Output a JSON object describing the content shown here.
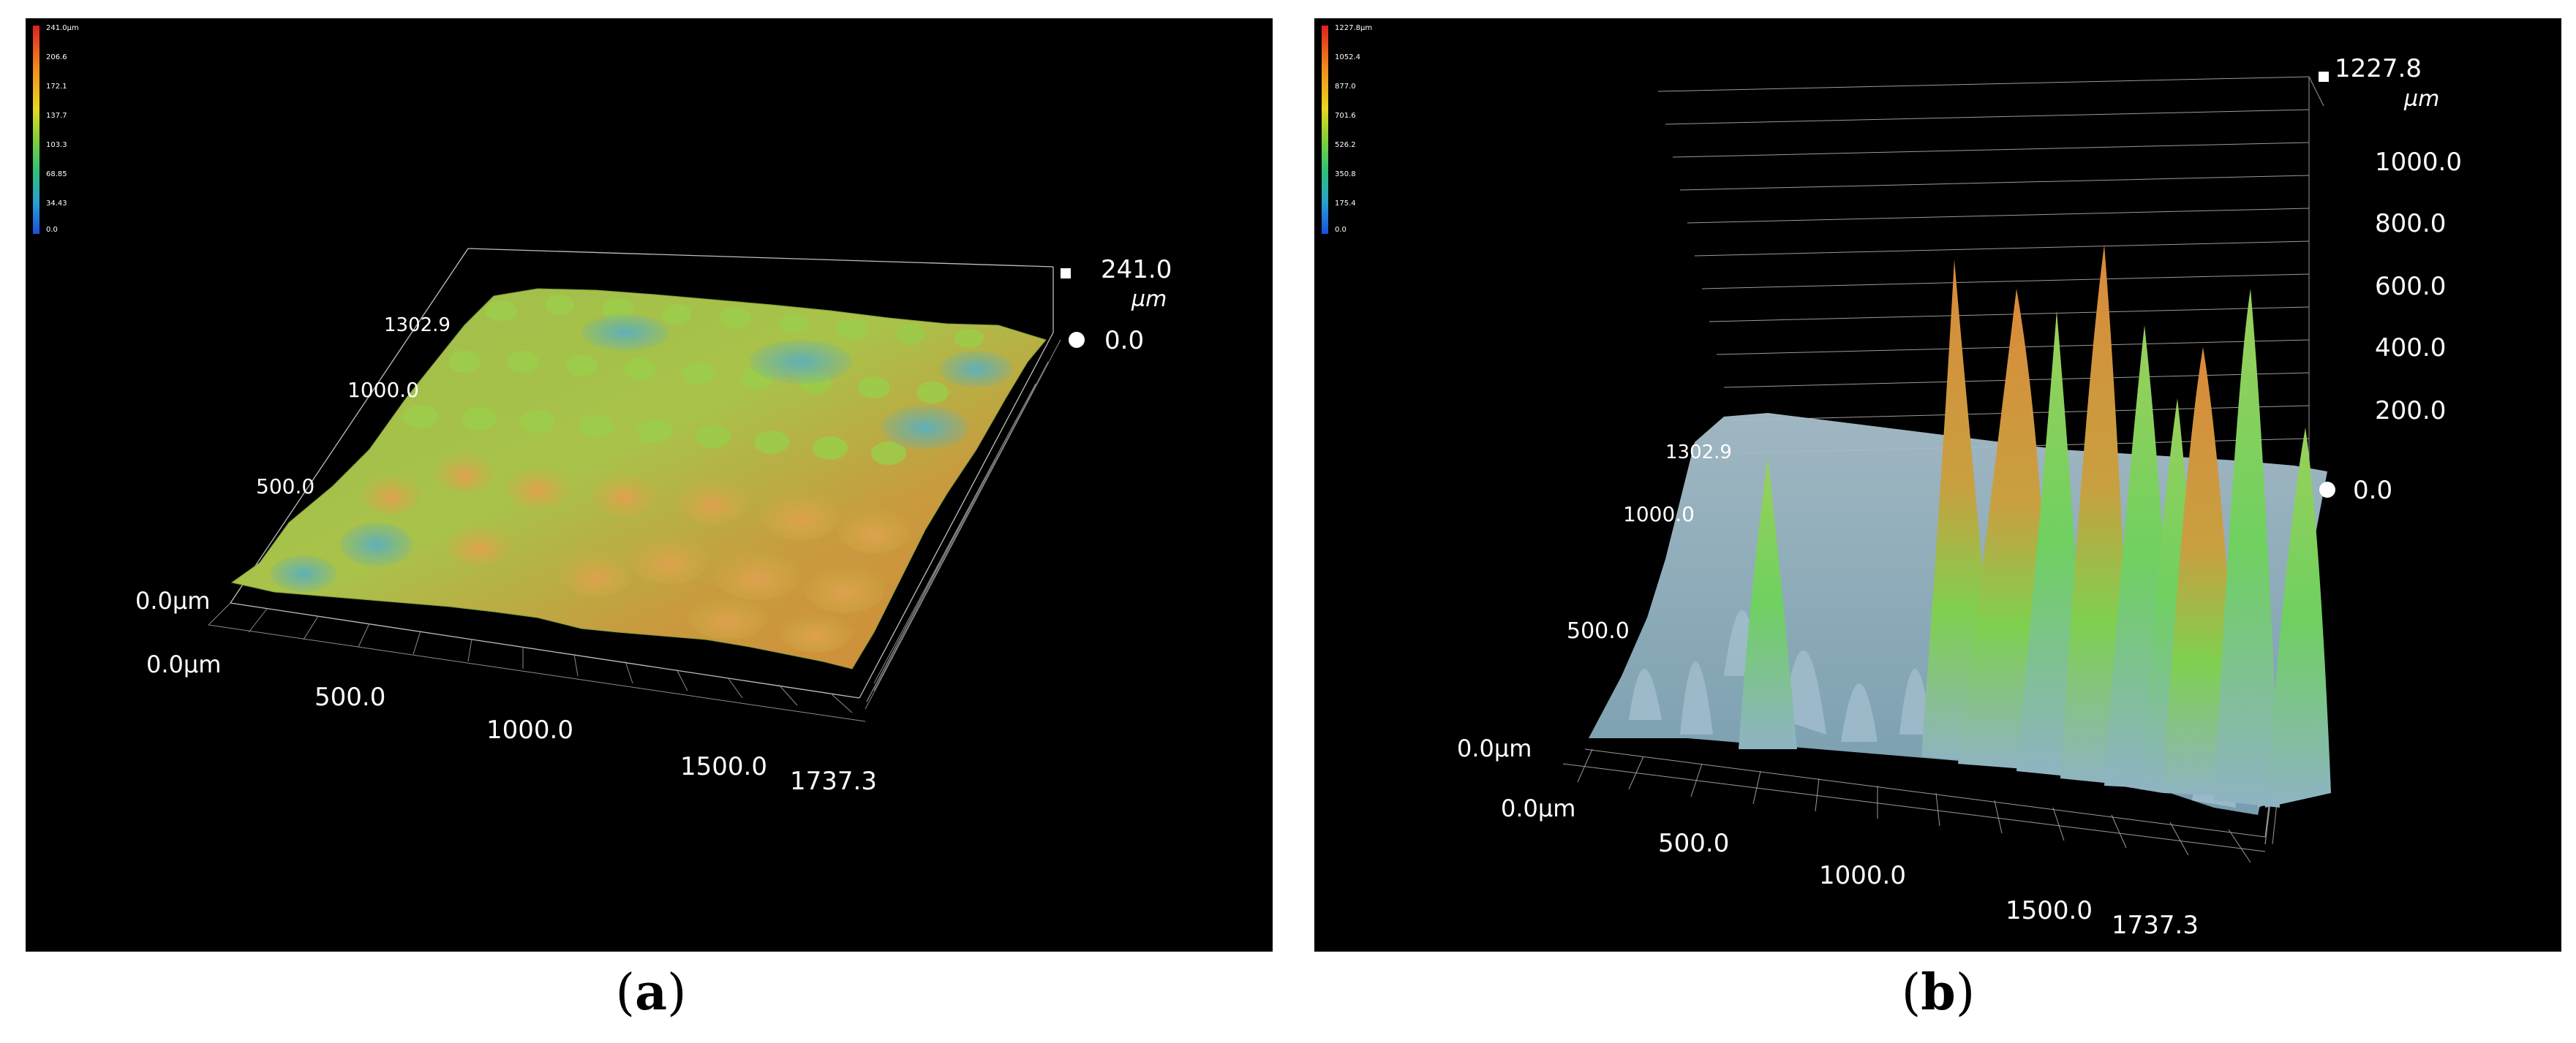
{
  "panels": [
    {
      "id": "a",
      "caption_paren_open": "(",
      "caption_letter": "a",
      "caption_paren_close": ")",
      "colorbar": {
        "labels": [
          "241.0µm",
          "206.6",
          "172.1",
          "137.7",
          "103.3",
          "68.85",
          "34.43",
          "0.0"
        ]
      },
      "z_top": {
        "value": "241.0",
        "unit": "µm"
      },
      "z_zero": "0.0",
      "y_axis": [
        "1302.9",
        "1000.0",
        "500.0",
        "0.0µm"
      ],
      "x_axis": [
        "0.0µm",
        "500.0",
        "1000.0",
        "1500.0",
        "1737.3"
      ]
    },
    {
      "id": "b",
      "caption_paren_open": "(",
      "caption_letter": "b",
      "caption_paren_close": ")",
      "colorbar": {
        "labels": [
          "1227.8µm",
          "1052.4",
          "877.0",
          "701.6",
          "526.2",
          "350.8",
          "175.4",
          "0.0"
        ]
      },
      "z_top": {
        "value": "1227.8",
        "unit": "µm"
      },
      "z_ticks": [
        "1000.0",
        "800.0",
        "600.0",
        "400.0",
        "200.0",
        "0.0"
      ],
      "y_axis": [
        "1302.9",
        "1000.0",
        "500.0",
        "0.0µm"
      ],
      "x_axis": [
        "0.0µm",
        "500.0",
        "1000.0",
        "1500.0",
        "1737.3"
      ]
    }
  ],
  "colors": {
    "colorbar_gradient": [
      "#e02020",
      "#f08a1c",
      "#e8d820",
      "#7fd03a",
      "#2fc07a",
      "#2a9fd0",
      "#1a50e0"
    ],
    "surface_a_main": "#b9c83e",
    "surface_a_warm": "#d9883a",
    "surface_a_cool": "#6fb6a8",
    "surface_b_base": "#8fb3c4",
    "surface_b_peak_warm": "#d98a3a",
    "surface_b_peak_green": "#6fd060"
  }
}
